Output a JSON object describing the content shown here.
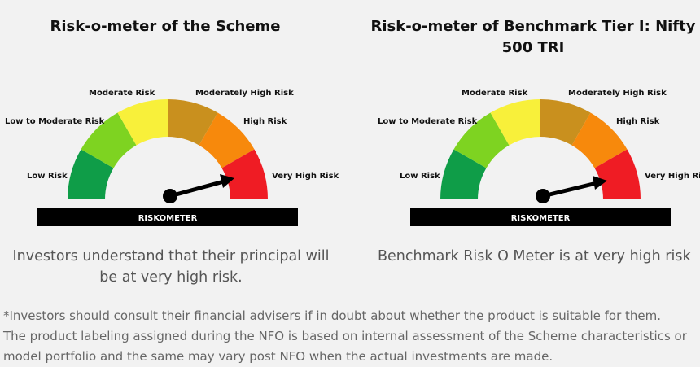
{
  "left": {
    "title": "Risk-o-meter of the Scheme",
    "caption_line1": "Investors understand that their principal will",
    "caption_line2": "be at very high risk."
  },
  "right": {
    "title_line1": "Risk-o-meter of Benchmark Tier I: Nifty",
    "title_line2": "500 TRI",
    "caption": "Benchmark Risk O Meter is at very high risk"
  },
  "gauge": {
    "labels": {
      "low": "Low Risk",
      "low_to_moderate": "Low to Moderate Risk",
      "moderate": "Moderate Risk",
      "moderately_high": "Moderately High Risk",
      "high": "High Risk",
      "very_high": "Very High Risk"
    },
    "bar_label": "RISKOMETER",
    "level": "Very High Risk",
    "segment_colors": [
      "#0f9d48",
      "#7ed321",
      "#f8f03a",
      "#c9901e",
      "#f7890c",
      "#ef1c24"
    ]
  },
  "disclaimer": {
    "line1": "*Investors should consult their financial advisers if in doubt about whether the product is suitable for them.",
    "line2": "The product labeling assigned during the NFO is based on internal assessment of the Scheme characteristics or",
    "line3": "model portfolio and the same may vary post NFO when the actual investments are made."
  }
}
